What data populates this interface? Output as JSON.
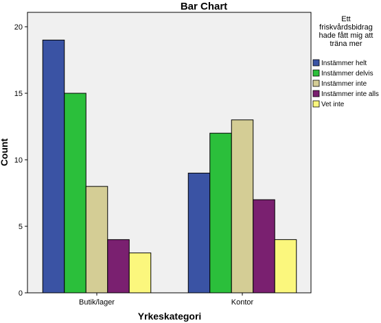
{
  "chart_data": {
    "type": "bar",
    "title": "Bar Chart",
    "xlabel": "Yrkeskategori",
    "ylabel": "Count",
    "categories": [
      "Butik/lager",
      "Kontor"
    ],
    "ylim": [
      0,
      20
    ],
    "yticks": [
      0,
      5,
      10,
      15,
      20
    ],
    "grid": false,
    "legend": {
      "placement": "right",
      "title_lines": [
        "Ett",
        "friskvårdsbidrag",
        "hade fått mig att",
        "träna mer"
      ]
    },
    "series": [
      {
        "name": "Instämmer helt",
        "color": "#3a53a4",
        "values": [
          19,
          9
        ]
      },
      {
        "name": "Instämmer delvis",
        "color": "#2bbf3b",
        "values": [
          15,
          12
        ]
      },
      {
        "name": "Instämmer inte",
        "color": "#d4cd95",
        "values": [
          8,
          13
        ]
      },
      {
        "name": "Instämmer inte alls",
        "color": "#7a2070",
        "values": [
          4,
          7
        ]
      },
      {
        "name": "Vet inte",
        "color": "#fbf77d",
        "values": [
          3,
          4
        ]
      }
    ],
    "plot_background": "#f0f0f0"
  }
}
